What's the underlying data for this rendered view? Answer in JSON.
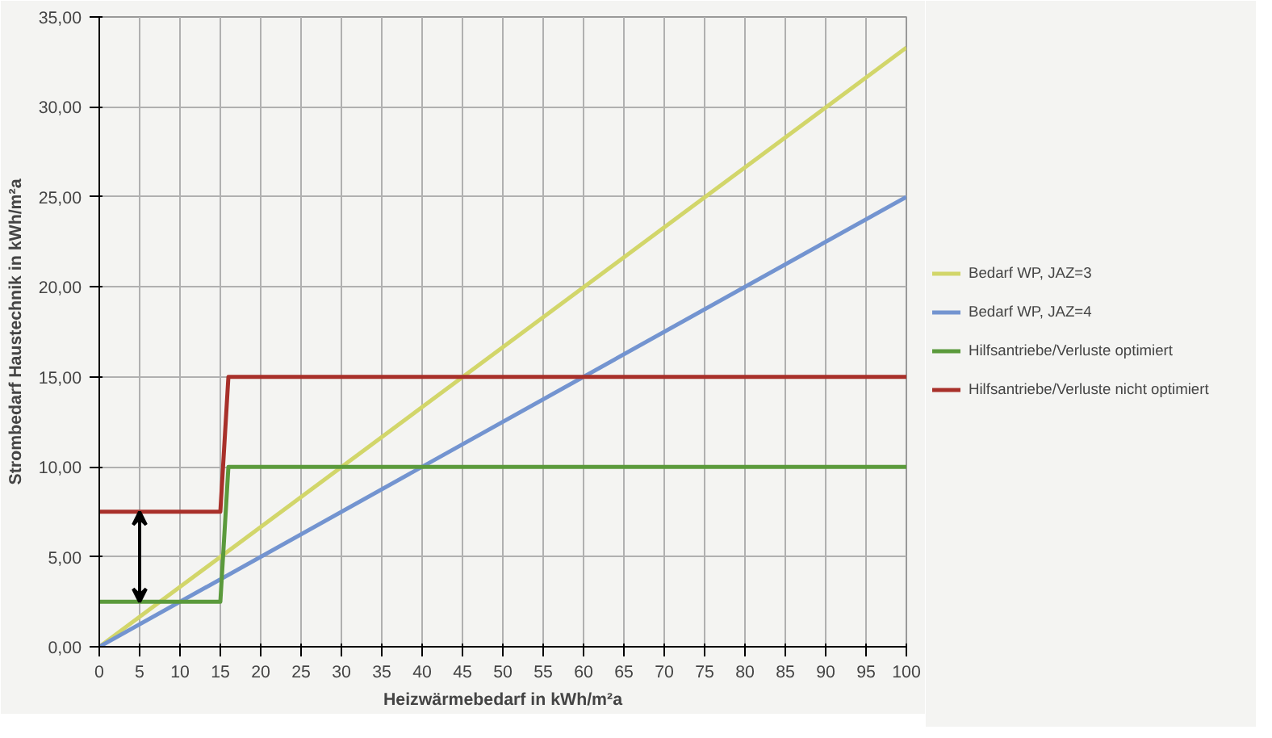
{
  "chart_data": {
    "type": "line",
    "xlabel": "Heizwärmebedarf in kWh/m²a",
    "ylabel": "Strombedarf Haustechnik in kWh/m²a",
    "xlim": [
      0,
      100
    ],
    "xticks": [
      0,
      5,
      10,
      15,
      20,
      25,
      30,
      35,
      40,
      45,
      50,
      55,
      60,
      65,
      70,
      75,
      80,
      85,
      90,
      95,
      100
    ],
    "ylim": [
      0,
      35
    ],
    "yticks": [
      {
        "value": 0,
        "label": "0,00"
      },
      {
        "value": 5,
        "label": "5,00"
      },
      {
        "value": 10,
        "label": "10,00"
      },
      {
        "value": 15,
        "label": "15,00"
      },
      {
        "value": 20,
        "label": "20,00"
      },
      {
        "value": 25,
        "label": "25,00"
      },
      {
        "value": 30,
        "label": "30,00"
      },
      {
        "value": 35,
        "label": "35,00"
      }
    ],
    "grid": true,
    "legend": "right",
    "line_style": "solid",
    "series": [
      {
        "name": "Bedarf WP, JAZ=3",
        "color": "#d2d66a",
        "x": [
          0,
          100
        ],
        "values": [
          0,
          33.3
        ]
      },
      {
        "name": "Bedarf WP, JAZ=4",
        "color": "#7394d0",
        "x": [
          0,
          100
        ],
        "values": [
          0,
          25
        ]
      },
      {
        "name": "Hilfsantriebe/Verluste optimiert",
        "color": "#5b9a3c",
        "x": [
          0,
          15,
          16,
          100
        ],
        "values": [
          2.5,
          2.5,
          10,
          10
        ]
      },
      {
        "name": "Hilfsantriebe/Verluste nicht optimiert",
        "color": "#a8302a",
        "x": [
          0,
          15,
          16,
          100
        ],
        "values": [
          7.5,
          7.5,
          15,
          15
        ]
      }
    ]
  }
}
